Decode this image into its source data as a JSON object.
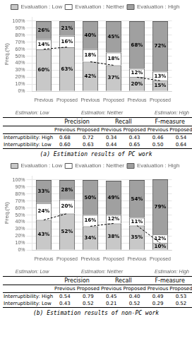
{
  "chart_data": [
    {
      "type": "bar",
      "title": "(a) Estimation results of PC work",
      "stacked": true,
      "data_labels": true,
      "grid": true,
      "legend": "top",
      "ylabel": "Freq.(%)",
      "categories": [
        "Previous",
        "Proposed",
        "Previous",
        "Proposed",
        "Previous",
        "Proposed"
      ],
      "groups": [
        "Estimaion: Low",
        "Estimation: Neither",
        "Estimaion: High"
      ],
      "series": [
        {
          "name": "Evaluation : Low",
          "color": "#c8c8c8",
          "values": [
            60,
            63,
            42,
            37,
            20,
            15
          ],
          "value_labels": [
            "60%",
            "63%",
            "42%",
            "37%",
            "20%",
            "15%"
          ]
        },
        {
          "name": "Evaluation : Neither",
          "color": "#ffffff",
          "values": [
            14,
            16,
            18,
            18,
            12,
            13
          ],
          "value_labels": [
            "14%",
            "16%",
            "18%",
            "18%",
            "12%",
            "13%"
          ]
        },
        {
          "name": "Evaluation : High",
          "color": "#a0a0a0",
          "values": [
            26,
            21,
            40,
            45,
            68,
            72
          ],
          "value_labels": [
            "26%",
            "21%",
            "40%",
            "45%",
            "68%",
            "72%"
          ]
        }
      ],
      "ylim": [
        0,
        106
      ],
      "yticks": [
        {
          "value": 0,
          "label": "0%"
        },
        {
          "value": 10,
          "label": "10%"
        },
        {
          "value": 20,
          "label": "20%"
        },
        {
          "value": 30,
          "label": "30%"
        },
        {
          "value": 40,
          "label": "40%"
        },
        {
          "value": 50,
          "label": "50%"
        },
        {
          "value": 60,
          "label": "60%"
        },
        {
          "value": 70,
          "label": "70%"
        },
        {
          "value": 80,
          "label": "80%"
        },
        {
          "value": 90,
          "label": "90%"
        },
        {
          "value": 100,
          "label": "100%"
        }
      ],
      "table": {
        "headers": [
          "Precision",
          "Recall",
          "F-measure"
        ],
        "subheaders": [
          "Previous",
          "Proposed",
          "Previous",
          "Proposed",
          "Previous",
          "Proposed"
        ],
        "rows": [
          [
            "Interruptibility: High",
            "0.68",
            "0.72",
            "0.34",
            "0.43",
            "0.46",
            "0.54"
          ],
          [
            "Interruptibility: Low",
            "0.60",
            "0.63",
            "0.44",
            "0.65",
            "0.50",
            "0.64"
          ]
        ]
      }
    },
    {
      "type": "bar",
      "title": "(b) Estimation results of non-PC work",
      "stacked": true,
      "data_labels": true,
      "grid": true,
      "legend": "top",
      "ylabel": "Freq.(%)",
      "categories": [
        "Previous",
        "Proposed",
        "Previous",
        "Proposed",
        "Previous",
        "Proposed"
      ],
      "groups": [
        "Estimaion: Low",
        "Estimation: Neither",
        "Estimaion: High"
      ],
      "series": [
        {
          "name": "Evaluation : Low",
          "color": "#c8c8c8",
          "values": [
            43,
            52,
            34,
            38,
            35,
            10
          ],
          "value_labels": [
            "43%",
            "52%",
            "34%",
            "38%",
            "35%",
            "10%"
          ]
        },
        {
          "name": "Evaluation : Neither",
          "color": "#ffffff",
          "values": [
            24,
            20,
            16,
            12,
            11,
            12
          ],
          "value_labels": [
            "24%",
            "20%",
            "16%",
            "12%",
            "11%",
            "12%"
          ]
        },
        {
          "name": "Evaluation : High",
          "color": "#a0a0a0",
          "values": [
            33,
            28,
            50,
            49,
            54,
            79
          ],
          "value_labels": [
            "33%",
            "28%",
            "50%",
            "49%",
            "54%",
            "79%"
          ]
        }
      ],
      "ylim": [
        0,
        106
      ],
      "yticks": [
        {
          "value": 0,
          "label": "0%"
        },
        {
          "value": 10,
          "label": "10%"
        },
        {
          "value": 20,
          "label": "20%"
        },
        {
          "value": 30,
          "label": "30%"
        },
        {
          "value": 40,
          "label": "40%"
        },
        {
          "value": 50,
          "label": "50%"
        },
        {
          "value": 60,
          "label": "60%"
        },
        {
          "value": 70,
          "label": "70%"
        },
        {
          "value": 80,
          "label": "80%"
        },
        {
          "value": 90,
          "label": "90%"
        },
        {
          "value": 100,
          "label": "100%"
        }
      ],
      "table": {
        "headers": [
          "Precision",
          "Recall",
          "F-measure"
        ],
        "subheaders": [
          "Previous",
          "Proposed",
          "Previous",
          "Proposed",
          "Previous",
          "Proposed"
        ],
        "rows": [
          [
            "Interruptibility: High",
            "0.54",
            "0.79",
            "0.45",
            "0.40",
            "0.49",
            "0.53"
          ],
          [
            "Interruptibility: Low",
            "0.43",
            "0.52",
            "0.21",
            "0.52",
            "0.29",
            "0.52"
          ]
        ]
      }
    }
  ]
}
